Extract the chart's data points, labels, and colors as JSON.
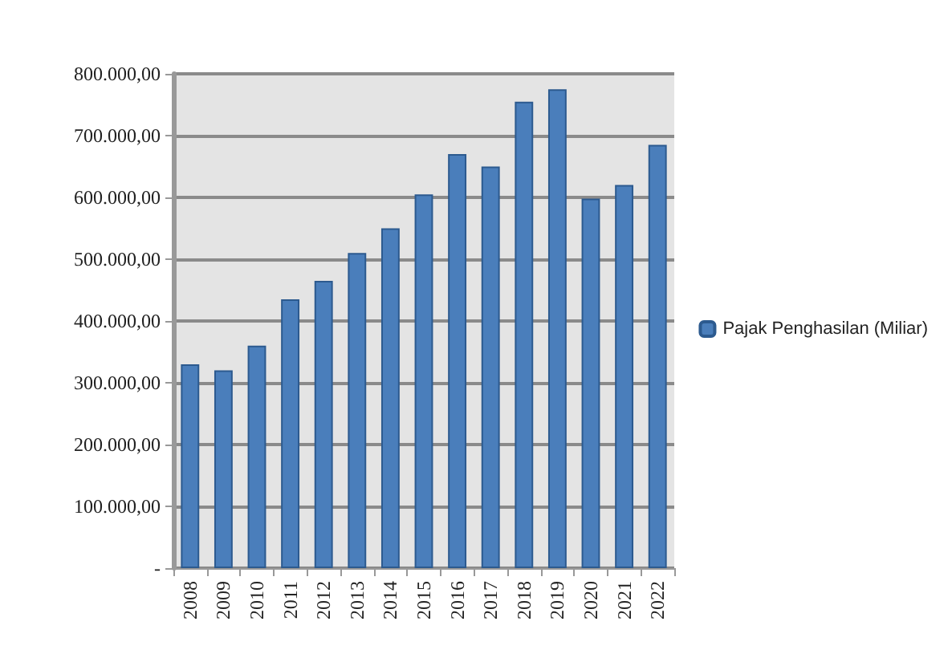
{
  "chart_data": {
    "type": "bar",
    "categories": [
      "2008",
      "2009",
      "2010",
      "2011",
      "2012",
      "2013",
      "2014",
      "2015",
      "2016",
      "2017",
      "2018",
      "2019",
      "2020",
      "2021",
      "2022"
    ],
    "series": [
      {
        "name": "Pajak Penghasilan (Miliar)",
        "color": "#4a7ebb",
        "values": [
          330000,
          320000,
          360000,
          435000,
          465000,
          510000,
          550000,
          605000,
          670000,
          650000,
          755000,
          775000,
          598000,
          620000,
          685000
        ]
      }
    ],
    "ylim": [
      0,
      800000
    ],
    "yticks": [
      {
        "value": 0,
        "label": "-"
      },
      {
        "value": 100000,
        "label": "100.000,00"
      },
      {
        "value": 200000,
        "label": "200.000,00"
      },
      {
        "value": 300000,
        "label": "300.000,00"
      },
      {
        "value": 400000,
        "label": "400.000,00"
      },
      {
        "value": 500000,
        "label": "500.000,00"
      },
      {
        "value": 600000,
        "label": "600.000,00"
      },
      {
        "value": 700000,
        "label": "700.000,00"
      },
      {
        "value": 800000,
        "label": "800.000,00"
      }
    ],
    "grid": "y",
    "legend": "right"
  }
}
